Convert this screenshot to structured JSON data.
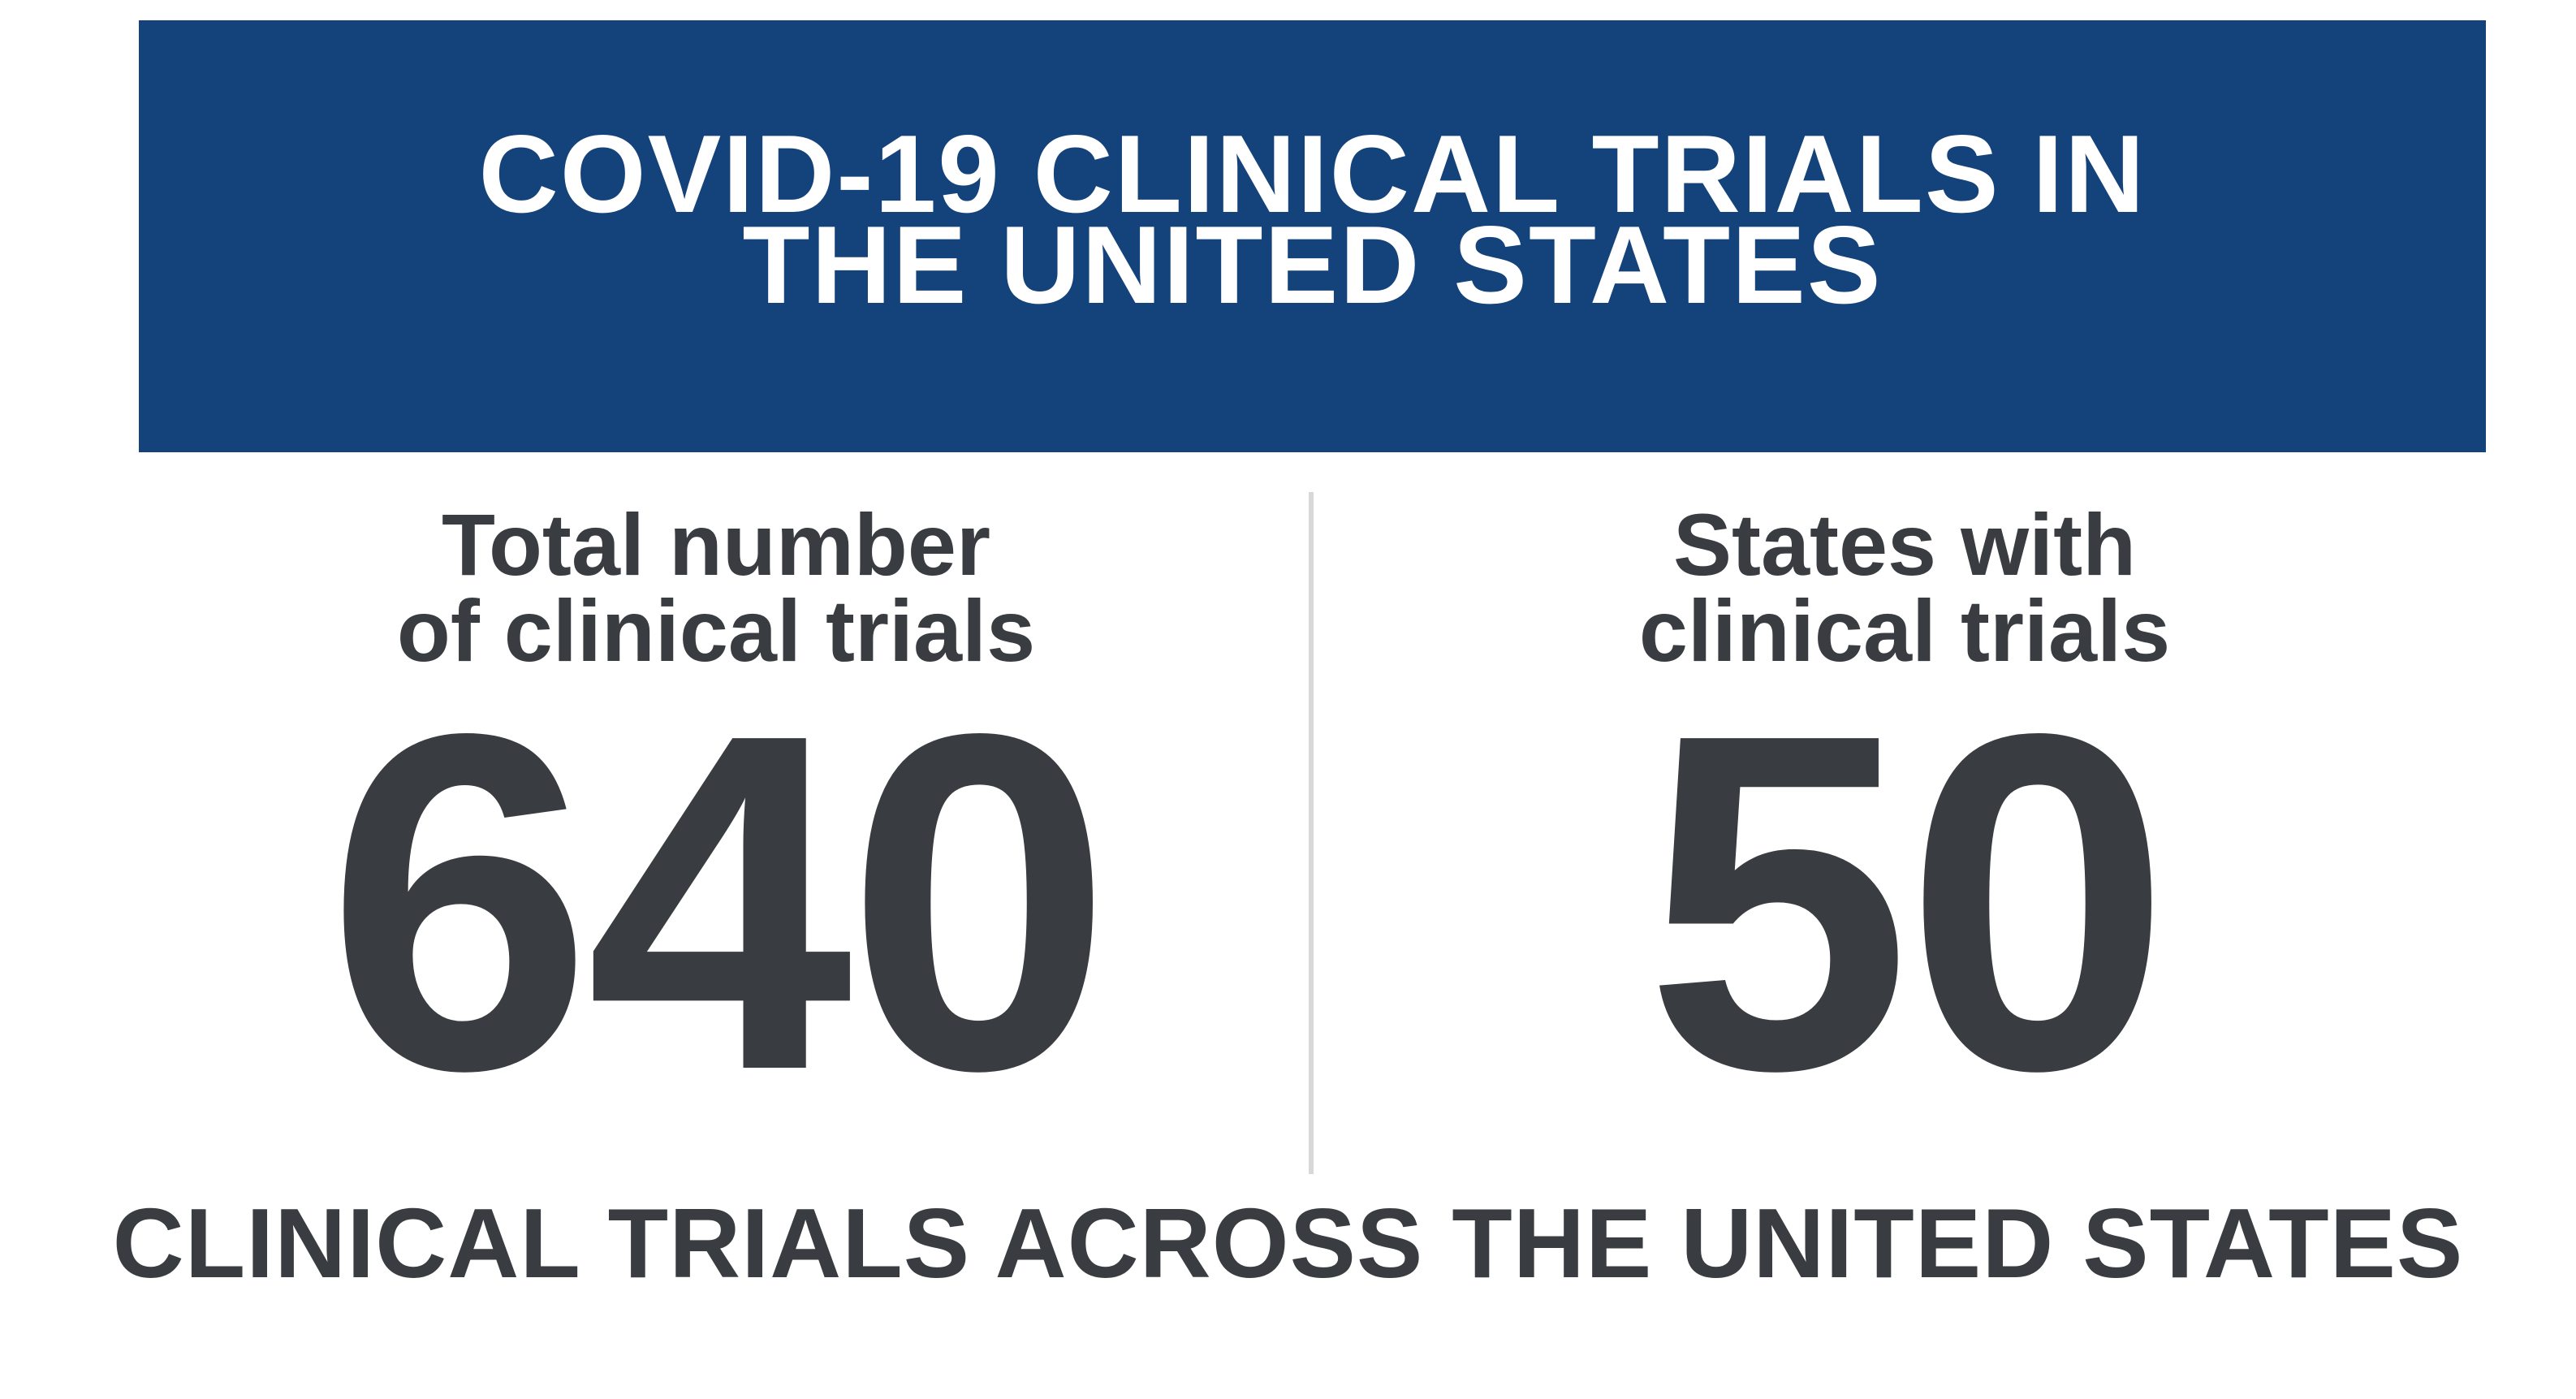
{
  "banner": {
    "title_line1": "COVID-19 CLINICAL TRIALS IN",
    "title_line2": "THE UNITED STATES",
    "color": "#14427a"
  },
  "stats": [
    {
      "label_line1": "Total number",
      "label_line2": "of clinical trials",
      "value": "640"
    },
    {
      "label_line1": "States with",
      "label_line2": "clinical trials",
      "value": "50"
    }
  ],
  "footer": {
    "text": "CLINICAL TRIALS ACROSS THE UNITED STATES"
  },
  "colors": {
    "text": "#393c40",
    "divider": "#d7d8da",
    "background": "#ffffff"
  }
}
